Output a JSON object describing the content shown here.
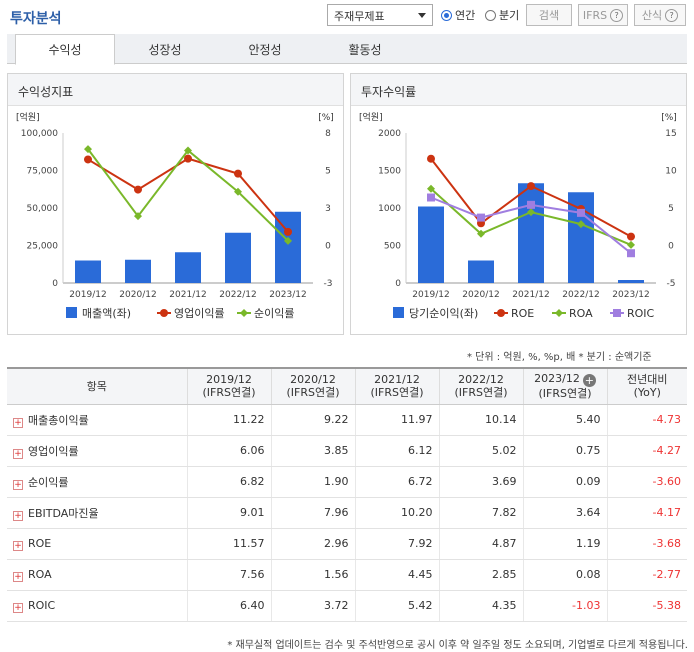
{
  "header": {
    "title": "투자분석",
    "select_value": "주재무제표",
    "radio_annual": "연간",
    "radio_quarter": "분기",
    "search_btn": "검색",
    "ifrs_btn": "IFRS",
    "calc_btn": "산식",
    "help_glyph": "?"
  },
  "tabs": [
    "수익성",
    "성장성",
    "안정성",
    "활동성"
  ],
  "chart_left": {
    "title": "수익성지표",
    "left_unit": "[억원]",
    "right_unit": "[%]",
    "left_ticks": [
      "100,000",
      "75,000",
      "50,000",
      "25,000",
      "0"
    ],
    "right_ticks": [
      "8",
      "5",
      "3",
      "0",
      "-3"
    ],
    "categories": [
      "2019/12",
      "2020/12",
      "2021/12",
      "2022/12",
      "2023/12"
    ],
    "legend": [
      "매출액(좌)",
      "영업이익률",
      "순이익률"
    ]
  },
  "chart_right": {
    "title": "투자수익률",
    "left_unit": "[억원]",
    "right_unit": "[%]",
    "left_ticks": [
      "2000",
      "1500",
      "1000",
      "500",
      "0"
    ],
    "right_ticks": [
      "15",
      "10",
      "5",
      "0",
      "-5"
    ],
    "categories": [
      "2019/12",
      "2020/12",
      "2021/12",
      "2022/12",
      "2023/12"
    ],
    "legend": [
      "당기순이익(좌)",
      "ROE",
      "ROA",
      "ROIC"
    ]
  },
  "chart_data": [
    {
      "type": "bar+line",
      "title": "수익성지표",
      "categories": [
        "2019/12",
        "2020/12",
        "2021/12",
        "2022/12",
        "2023/12"
      ],
      "ylim_left": [
        0,
        100000
      ],
      "ylim_right": [
        -3,
        8
      ],
      "series": [
        {
          "name": "매출액(좌)",
          "axis": "left",
          "type": "bar",
          "color": "#2a6bd8",
          "values": [
            15000,
            15500,
            20500,
            33500,
            47500
          ]
        },
        {
          "name": "영업이익률",
          "axis": "right",
          "type": "line",
          "color": "#cc3311",
          "values": [
            6.06,
            3.85,
            6.12,
            5.02,
            0.75
          ]
        },
        {
          "name": "순이익률",
          "axis": "right",
          "type": "line",
          "color": "#7ab82a",
          "values": [
            6.82,
            1.9,
            6.72,
            3.69,
            0.09
          ]
        }
      ]
    },
    {
      "type": "bar+line",
      "title": "투자수익률",
      "categories": [
        "2019/12",
        "2020/12",
        "2021/12",
        "2022/12",
        "2023/12"
      ],
      "ylim_left": [
        0,
        2000
      ],
      "ylim_right": [
        -5,
        15
      ],
      "series": [
        {
          "name": "당기순이익(좌)",
          "axis": "left",
          "type": "bar",
          "color": "#2a6bd8",
          "values": [
            1020,
            300,
            1330,
            1210,
            40
          ]
        },
        {
          "name": "ROE",
          "axis": "right",
          "type": "line",
          "color": "#cc3311",
          "values": [
            11.57,
            2.96,
            7.92,
            4.87,
            1.19
          ]
        },
        {
          "name": "ROA",
          "axis": "right",
          "type": "line",
          "color": "#7ab82a",
          "values": [
            7.56,
            1.56,
            4.45,
            2.85,
            0.08
          ]
        },
        {
          "name": "ROIC",
          "axis": "right",
          "type": "line",
          "color": "#a07ee0",
          "values": [
            6.4,
            3.72,
            5.42,
            4.35,
            -1.03
          ]
        }
      ]
    }
  ],
  "units_note": "* 단위 : 억원, %, %p, 배     * 분기 : 순액기준",
  "table": {
    "head": [
      "항목",
      "2019/12\n(IFRS연결)",
      "2020/12\n(IFRS연결)",
      "2021/12\n(IFRS연결)",
      "2022/12\n(IFRS연결)",
      "2023/12\n(IFRS연결)",
      "전년대비\n(YoY)"
    ],
    "rows": [
      [
        "매출총이익률",
        "11.22",
        "9.22",
        "11.97",
        "10.14",
        "5.40",
        "-4.73"
      ],
      [
        "영업이익률",
        "6.06",
        "3.85",
        "6.12",
        "5.02",
        "0.75",
        "-4.27"
      ],
      [
        "순이익률",
        "6.82",
        "1.90",
        "6.72",
        "3.69",
        "0.09",
        "-3.60"
      ],
      [
        "EBITDA마진율",
        "9.01",
        "7.96",
        "10.20",
        "7.82",
        "3.64",
        "-4.17"
      ],
      [
        "ROE",
        "11.57",
        "2.96",
        "7.92",
        "4.87",
        "1.19",
        "-3.68"
      ],
      [
        "ROA",
        "7.56",
        "1.56",
        "4.45",
        "2.85",
        "0.08",
        "-2.77"
      ],
      [
        "ROIC",
        "6.40",
        "3.72",
        "5.42",
        "4.35",
        "-1.03",
        "-5.38"
      ]
    ]
  },
  "footnote": "* 재무실적 업데이트는 검수 및 주석반영으로 공시 이후 약 일주일 정도 소요되며, 기업별로 다르게 적용됩니다.",
  "colors": {
    "accent": "#2d5fa8",
    "bar": "#2a6bd8",
    "red": "#cc3311",
    "green": "#7ab82a",
    "purple": "#a07ee0",
    "negative": "#e33333"
  }
}
